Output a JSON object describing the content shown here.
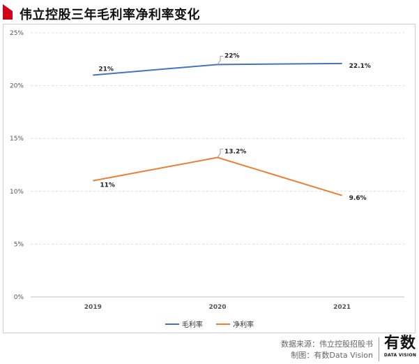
{
  "header": {
    "title": "伟立控股三年毛利率净利率变化"
  },
  "chart_data": {
    "type": "line",
    "title": "伟立控股三年毛利率净利率变化",
    "categories": [
      "2019",
      "2020",
      "2021"
    ],
    "series": [
      {
        "name": "毛利率",
        "color": "#4472c4",
        "values": [
          21,
          22,
          22.1
        ],
        "labels": [
          "21%",
          "22%",
          "22.1%"
        ]
      },
      {
        "name": "净利率",
        "color": "#ed7d31",
        "values": [
          11,
          13.2,
          9.6
        ],
        "labels": [
          "11%",
          "13.2%",
          "9.6%"
        ]
      }
    ],
    "ylim": [
      0,
      25
    ],
    "yticks": [
      "0%",
      "5%",
      "10%",
      "15%",
      "20%",
      "25%"
    ],
    "grid": true,
    "legend": "bottom"
  },
  "legend": {
    "gross": "毛利率",
    "net": "净利率"
  },
  "footer": {
    "source": "数据来源：伟立控股招股书",
    "made_by": "制图：有数Data Vision",
    "brand_main": "有数",
    "brand_sub": "DATA VISION"
  }
}
